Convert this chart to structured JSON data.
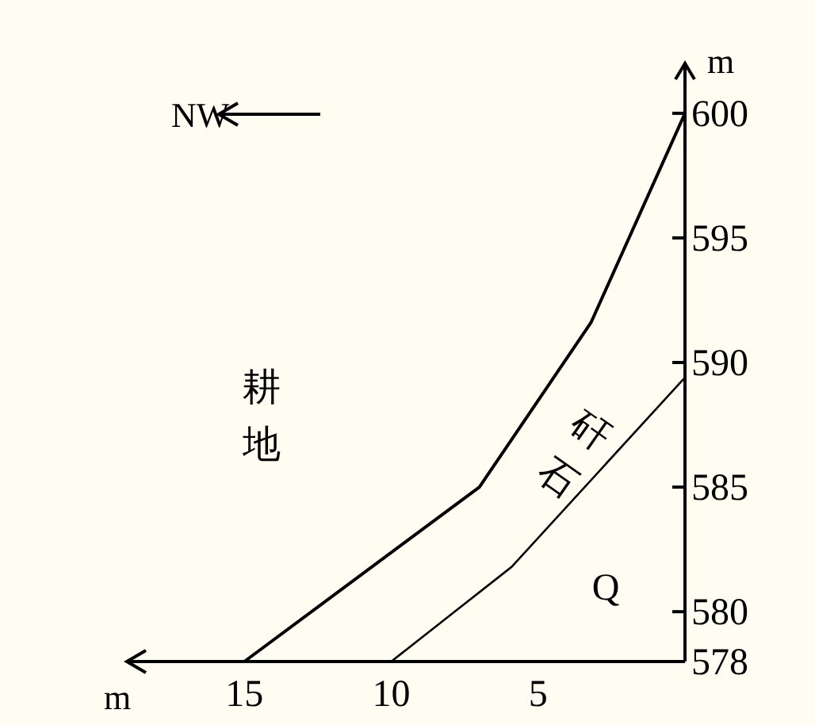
{
  "chart_data": {
    "type": "line",
    "xlabel": "m",
    "ylabel": "m",
    "xlim": [
      19,
      0
    ],
    "ylim": [
      578,
      602
    ],
    "xticks": [
      15,
      10,
      5
    ],
    "yticks": [
      578,
      580,
      585,
      590,
      595,
      600
    ],
    "series": [
      {
        "color": "#000000",
        "x": [
          15,
          7.0,
          3.2,
          0
        ],
        "values": [
          578,
          585,
          591.6,
          600
        ]
      },
      {
        "color": "#000000",
        "x": [
          10,
          5.9,
          0
        ],
        "values": [
          578,
          581.8,
          589.4
        ]
      }
    ],
    "annotations": [
      "耕地",
      "矸石",
      "Q",
      "NW"
    ]
  }
}
